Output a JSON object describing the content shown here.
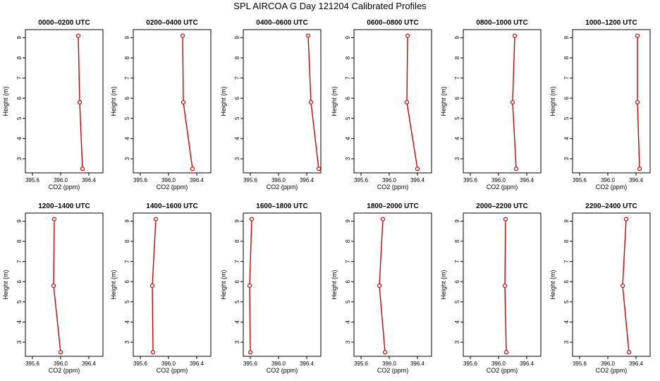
{
  "figure": {
    "title": "SPL AIRCOA G  Day 121204  Calibrated Profiles"
  },
  "colors": {
    "series": "#cc0000",
    "axes": "#000000",
    "background": "#ffffff"
  },
  "chart_data": [
    {
      "type": "line",
      "title": "0000–0200 UTC",
      "xlabel": "CO2 (ppm)",
      "ylabel": "Height (m)",
      "xlim": [
        395.5,
        396.6
      ],
      "ylim": [
        2.3,
        9.4
      ],
      "x_ticks": [
        "395.6",
        "396.0",
        "396.4"
      ],
      "x_tick_values": [
        395.6,
        396.0,
        396.4
      ],
      "y_ticks": [
        "3",
        "4",
        "5",
        "6",
        "7",
        "8",
        "9"
      ],
      "series": [
        {
          "x": [
            396.31,
            396.27,
            396.25
          ],
          "y": [
            2.5,
            5.8,
            9.1
          ]
        }
      ]
    },
    {
      "type": "line",
      "title": "0200–0400 UTC",
      "xlabel": "CO2 (ppm)",
      "ylabel": "Height (m)",
      "xlim": [
        395.5,
        396.6
      ],
      "ylim": [
        2.3,
        9.4
      ],
      "x_ticks": [
        "395.6",
        "396.0",
        "396.4"
      ],
      "x_tick_values": [
        395.6,
        396.0,
        396.4
      ],
      "y_ticks": [
        "3",
        "4",
        "5",
        "6",
        "7",
        "8",
        "9"
      ],
      "series": [
        {
          "x": [
            396.34,
            396.21,
            396.2
          ],
          "y": [
            2.5,
            5.8,
            9.1
          ]
        }
      ]
    },
    {
      "type": "line",
      "title": "0400–0600 UTC",
      "xlabel": "CO2 (ppm)",
      "ylabel": "Height (m)",
      "xlim": [
        395.5,
        396.6
      ],
      "ylim": [
        2.3,
        9.4
      ],
      "x_ticks": [
        "395.6",
        "396.0",
        "396.4"
      ],
      "x_tick_values": [
        395.6,
        396.0,
        396.4
      ],
      "y_ticks": [
        "3",
        "4",
        "5",
        "6",
        "7",
        "8",
        "9"
      ],
      "series": [
        {
          "x": [
            396.57,
            396.46,
            396.42
          ],
          "y": [
            2.5,
            5.8,
            9.1
          ]
        }
      ]
    },
    {
      "type": "line",
      "title": "0600–0800 UTC",
      "xlabel": "CO2 (ppm)",
      "ylabel": "Height (m)",
      "xlim": [
        395.5,
        396.6
      ],
      "ylim": [
        2.3,
        9.4
      ],
      "x_ticks": [
        "395.6",
        "396.0",
        "396.4"
      ],
      "x_tick_values": [
        395.6,
        396.0,
        396.4
      ],
      "y_ticks": [
        "3",
        "4",
        "5",
        "6",
        "7",
        "8",
        "9"
      ],
      "series": [
        {
          "x": [
            396.4,
            396.25,
            396.26
          ],
          "y": [
            2.5,
            5.8,
            9.1
          ]
        }
      ]
    },
    {
      "type": "line",
      "title": "0800–1000 UTC",
      "xlabel": "CO2 (ppm)",
      "ylabel": "Height (m)",
      "xlim": [
        395.5,
        396.6
      ],
      "ylim": [
        2.3,
        9.4
      ],
      "x_ticks": [
        "395.6",
        "396.0",
        "396.4"
      ],
      "x_tick_values": [
        395.6,
        396.0,
        396.4
      ],
      "y_ticks": [
        "3",
        "4",
        "5",
        "6",
        "7",
        "8",
        "9"
      ],
      "series": [
        {
          "x": [
            396.25,
            396.2,
            396.23
          ],
          "y": [
            2.5,
            5.8,
            9.1
          ]
        }
      ]
    },
    {
      "type": "line",
      "title": "1000–1200 UTC",
      "xlabel": "CO2 (ppm)",
      "ylabel": "Height (m)",
      "xlim": [
        395.5,
        396.6
      ],
      "ylim": [
        2.3,
        9.4
      ],
      "x_ticks": [
        "395.6",
        "396.0",
        "396.4"
      ],
      "x_tick_values": [
        395.6,
        396.0,
        396.4
      ],
      "y_ticks": [
        "3",
        "4",
        "5",
        "6",
        "7",
        "8",
        "9"
      ],
      "series": [
        {
          "x": [
            396.45,
            396.42,
            396.42
          ],
          "y": [
            2.5,
            5.8,
            9.1
          ]
        }
      ]
    },
    {
      "type": "line",
      "title": "1200–1400 UTC",
      "xlabel": "CO2 (ppm)",
      "ylabel": "Height (m)",
      "xlim": [
        395.5,
        396.6
      ],
      "ylim": [
        2.3,
        9.4
      ],
      "x_ticks": [
        "395.6",
        "396.0",
        "396.4"
      ],
      "x_tick_values": [
        395.6,
        396.0,
        396.4
      ],
      "y_ticks": [
        "3",
        "4",
        "5",
        "6",
        "7",
        "8",
        "9"
      ],
      "series": [
        {
          "x": [
            396.0,
            395.9,
            395.91
          ],
          "y": [
            2.5,
            5.8,
            9.1
          ]
        }
      ]
    },
    {
      "type": "line",
      "title": "1400–1600 UTC",
      "xlabel": "CO2 (ppm)",
      "ylabel": "Height (m)",
      "xlim": [
        395.5,
        396.6
      ],
      "ylim": [
        2.3,
        9.4
      ],
      "x_ticks": [
        "395.6",
        "396.0",
        "396.4"
      ],
      "x_tick_values": [
        395.6,
        396.0,
        396.4
      ],
      "y_ticks": [
        "3",
        "4",
        "5",
        "6",
        "7",
        "8",
        "9"
      ],
      "series": [
        {
          "x": [
            395.78,
            395.77,
            395.82
          ],
          "y": [
            2.5,
            5.8,
            9.1
          ]
        }
      ]
    },
    {
      "type": "line",
      "title": "1600–1800 UTC",
      "xlabel": "CO2 (ppm)",
      "ylabel": "Height (m)",
      "xlim": [
        395.5,
        396.6
      ],
      "ylim": [
        2.3,
        9.4
      ],
      "x_ticks": [
        "395.6",
        "396.0",
        "396.4"
      ],
      "x_tick_values": [
        395.6,
        396.0,
        396.4
      ],
      "y_ticks": [
        "3",
        "4",
        "5",
        "6",
        "7",
        "8",
        "9"
      ],
      "series": [
        {
          "x": [
            395.6,
            395.59,
            395.62
          ],
          "y": [
            2.5,
            5.8,
            9.1
          ]
        }
      ]
    },
    {
      "type": "line",
      "title": "1800–2000 UTC",
      "xlabel": "CO2 (ppm)",
      "ylabel": "Height (m)",
      "xlim": [
        395.5,
        396.6
      ],
      "ylim": [
        2.3,
        9.4
      ],
      "x_ticks": [
        "395.6",
        "396.0",
        "396.4"
      ],
      "x_tick_values": [
        395.6,
        396.0,
        396.4
      ],
      "y_ticks": [
        "3",
        "4",
        "5",
        "6",
        "7",
        "8",
        "9"
      ],
      "series": [
        {
          "x": [
            395.94,
            395.86,
            395.91
          ],
          "y": [
            2.5,
            5.8,
            9.1
          ]
        }
      ]
    },
    {
      "type": "line",
      "title": "2000–2200 UTC",
      "xlabel": "CO2 (ppm)",
      "ylabel": "Height (m)",
      "xlim": [
        395.5,
        396.6
      ],
      "ylim": [
        2.3,
        9.4
      ],
      "x_ticks": [
        "395.6",
        "396.0",
        "396.4"
      ],
      "x_tick_values": [
        395.6,
        396.0,
        396.4
      ],
      "y_ticks": [
        "3",
        "4",
        "5",
        "6",
        "7",
        "8",
        "9"
      ],
      "series": [
        {
          "x": [
            396.11,
            396.09,
            396.1
          ],
          "y": [
            2.5,
            5.8,
            9.1
          ]
        }
      ]
    },
    {
      "type": "line",
      "title": "2200–2400 UTC",
      "xlabel": "CO2 (ppm)",
      "ylabel": "Height (m)",
      "xlim": [
        395.5,
        396.6
      ],
      "ylim": [
        2.3,
        9.4
      ],
      "x_ticks": [
        "395.6",
        "396.0",
        "396.4"
      ],
      "x_tick_values": [
        395.6,
        396.0,
        396.4
      ],
      "y_ticks": [
        "3",
        "4",
        "5",
        "6",
        "7",
        "8",
        "9"
      ],
      "series": [
        {
          "x": [
            396.3,
            396.21,
            396.26
          ],
          "y": [
            2.5,
            5.8,
            9.1
          ]
        }
      ]
    }
  ]
}
